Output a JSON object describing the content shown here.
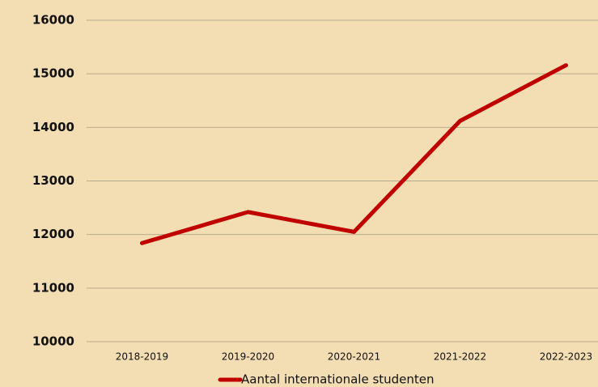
{
  "chart_data": {
    "type": "line",
    "categories": [
      "2018-2019",
      "2019-2020",
      "2020-2021",
      "2021-2022",
      "2022-2023"
    ],
    "series": [
      {
        "name": "Aantal internationale studenten",
        "color": "#c00000",
        "values": [
          11840,
          12420,
          12050,
          14120,
          15160
        ]
      }
    ],
    "ylim": [
      10000,
      16000
    ],
    "yticks": [
      10000,
      11000,
      12000,
      13000,
      14000,
      15000,
      16000
    ],
    "grid": true,
    "legend": "bottom"
  }
}
